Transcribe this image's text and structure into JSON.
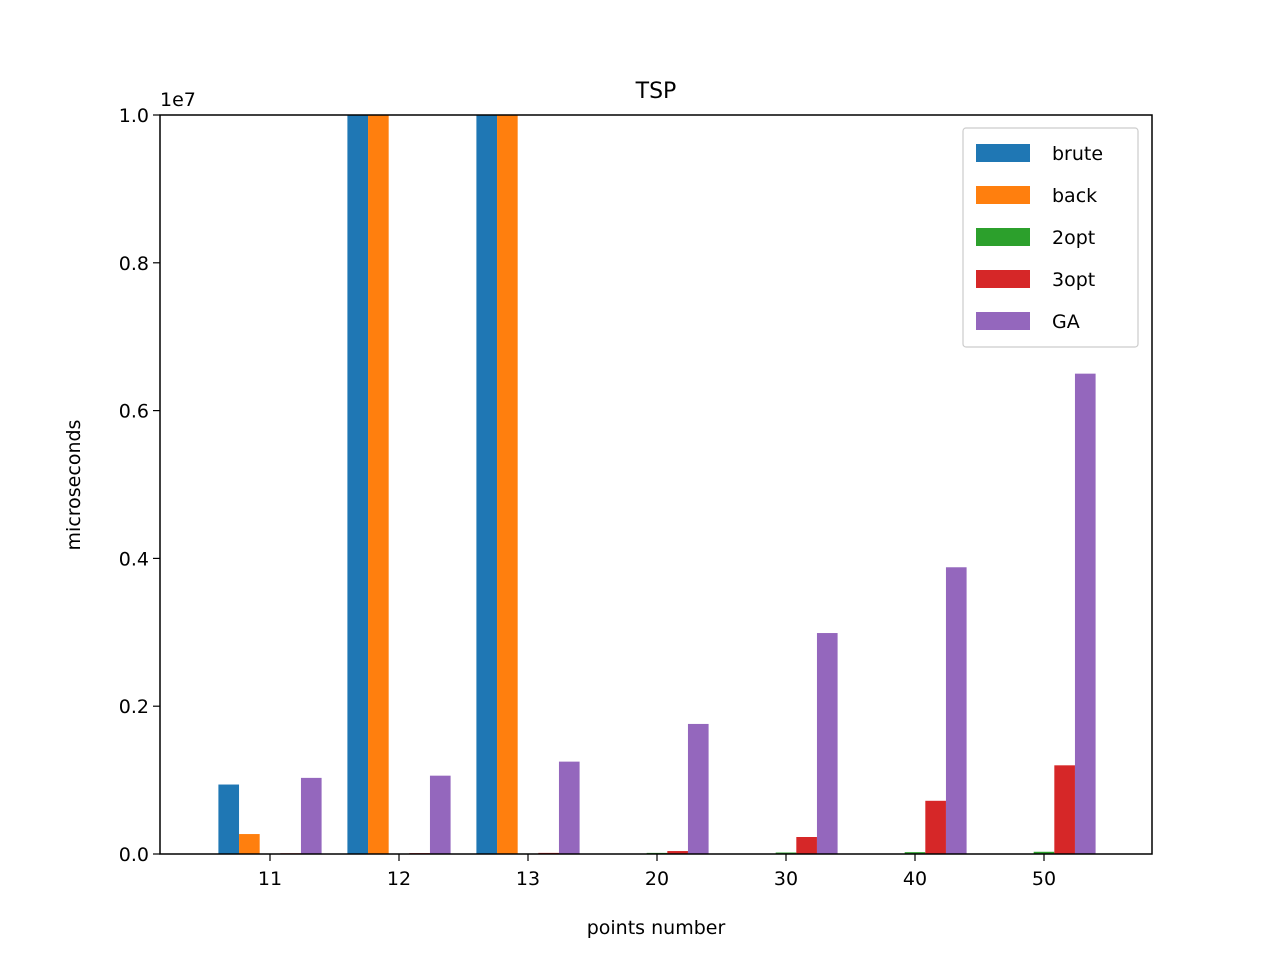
{
  "chart_data": {
    "type": "bar",
    "title": "TSP",
    "xlabel": "points number",
    "ylabel": "microseconds",
    "y_scale_label": "1e7",
    "scale_factor": 10000000,
    "ylim": [
      0,
      10000000
    ],
    "yticks": [
      0,
      2000000,
      4000000,
      6000000,
      8000000,
      10000000
    ],
    "ytick_labels": [
      "0.0",
      "0.2",
      "0.4",
      "0.6",
      "0.8",
      "1.0"
    ],
    "grid": false,
    "legend_position": "top-right",
    "categories": [
      "11",
      "12",
      "13",
      "20",
      "30",
      "40",
      "50"
    ],
    "series": [
      {
        "name": "brute",
        "color": "#1f77b4",
        "values": [
          940000,
          10000000,
          10000000,
          0,
          0,
          0,
          0
        ]
      },
      {
        "name": "back",
        "color": "#ff7f0e",
        "values": [
          270000,
          10000000,
          10000000,
          0,
          0,
          0,
          0
        ]
      },
      {
        "name": "2opt",
        "color": "#2ca02c",
        "values": [
          5000,
          6000,
          7000,
          15000,
          20000,
          25000,
          30000
        ]
      },
      {
        "name": "3opt",
        "color": "#d62728",
        "values": [
          10000,
          12000,
          15000,
          40000,
          230000,
          720000,
          1200000
        ]
      },
      {
        "name": "GA",
        "color": "#9467bd",
        "values": [
          1030000,
          1060000,
          1250000,
          1760000,
          2990000,
          3880000,
          6500000
        ]
      }
    ]
  }
}
